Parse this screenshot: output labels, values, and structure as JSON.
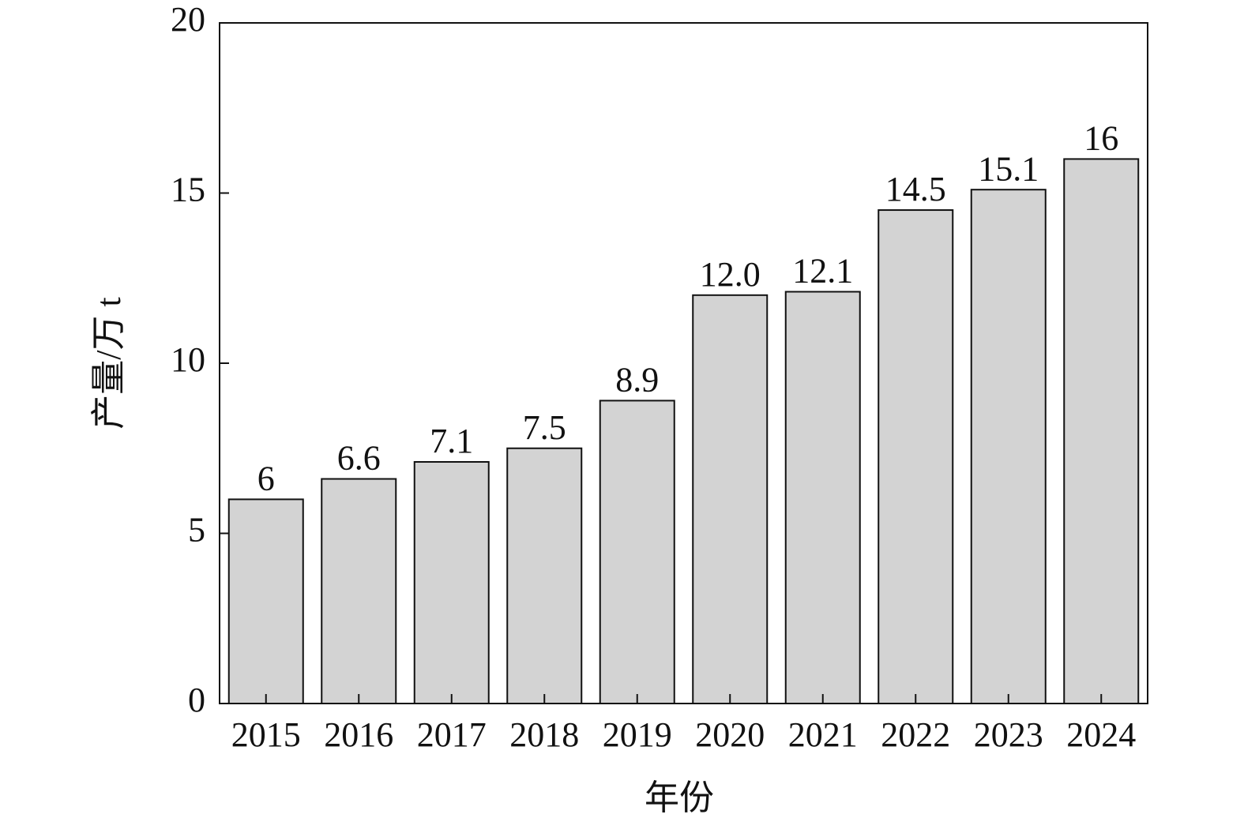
{
  "chart_data": {
    "type": "bar",
    "x_label": "年份",
    "y_label": "产量/万 t",
    "categories": [
      "2015",
      "2016",
      "2017",
      "2018",
      "2019",
      "2020",
      "2021",
      "2022",
      "2023",
      "2024"
    ],
    "values": [
      6,
      6.6,
      7.1,
      7.5,
      8.9,
      12.0,
      12.1,
      14.5,
      15.1,
      16
    ],
    "value_labels": [
      "6",
      "6.6",
      "7.1",
      "7.5",
      "8.9",
      "12.0",
      "12.1",
      "14.5",
      "15.1",
      "16"
    ],
    "color": "#d3d3d3",
    "ylim": [
      0,
      20
    ],
    "yticks": [
      0,
      5,
      10,
      15,
      20
    ],
    "grid": false
  }
}
